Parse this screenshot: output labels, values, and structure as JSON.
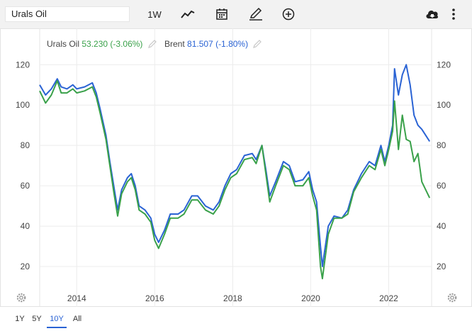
{
  "toolbar": {
    "search_value": "Urals Oil",
    "interval_label": "1W",
    "icons": [
      "line-chart-icon",
      "calendar-icon",
      "pencil-icon",
      "add-circle-icon",
      "download-cloud-icon",
      "more-vertical-icon"
    ]
  },
  "legend": [
    {
      "name": "Urals Oil",
      "value": "53.230 (-3.06%)",
      "color": "#3aa14a"
    },
    {
      "name": "Brent",
      "value": "81.507 (-1.80%)",
      "color": "#2a63d4"
    }
  ],
  "range_buttons": [
    "1Y",
    "5Y",
    "10Y",
    "All"
  ],
  "active_range": "10Y",
  "chart_data": {
    "type": "line",
    "x_ticks": [
      "2014",
      "2016",
      "2018",
      "2020",
      "2022"
    ],
    "y_ticks": [
      "20",
      "40",
      "60",
      "80",
      "100",
      "120"
    ],
    "xlim": [
      2013.05,
      2023.1
    ],
    "ylim": [
      0,
      138
    ],
    "grid": true,
    "series": [
      {
        "name": "Brent",
        "color": "#2a63d4",
        "x": [
          2013.05,
          2013.2,
          2013.35,
          2013.5,
          2013.6,
          2013.75,
          2013.9,
          2014.0,
          2014.2,
          2014.4,
          2014.5,
          2014.6,
          2014.75,
          2014.85,
          2014.95,
          2015.05,
          2015.15,
          2015.3,
          2015.4,
          2015.5,
          2015.6,
          2015.75,
          2015.9,
          2016.0,
          2016.1,
          2016.25,
          2016.4,
          2016.6,
          2016.75,
          2016.95,
          2017.1,
          2017.3,
          2017.5,
          2017.65,
          2017.8,
          2017.95,
          2018.1,
          2018.3,
          2018.5,
          2018.6,
          2018.75,
          2018.85,
          2018.95,
          2019.1,
          2019.3,
          2019.45,
          2019.6,
          2019.8,
          2019.95,
          2020.05,
          2020.15,
          2020.25,
          2020.3,
          2020.45,
          2020.6,
          2020.8,
          2020.95,
          2021.1,
          2021.3,
          2021.5,
          2021.65,
          2021.8,
          2021.9,
          2022.0,
          2022.1,
          2022.15,
          2022.25,
          2022.35,
          2022.45,
          2022.55,
          2022.65,
          2022.75,
          2022.85,
          2022.95,
          2023.05
        ],
        "y": [
          110,
          105,
          108,
          113,
          109,
          108,
          110,
          108,
          109,
          111,
          106,
          98,
          85,
          72,
          60,
          48,
          58,
          64,
          66,
          60,
          50,
          48,
          44,
          36,
          32,
          38,
          46,
          46,
          48,
          55,
          55,
          50,
          48,
          52,
          60,
          66,
          68,
          75,
          76,
          73,
          80,
          68,
          55,
          62,
          72,
          70,
          62,
          63,
          67,
          58,
          52,
          30,
          20,
          40,
          45,
          44,
          48,
          58,
          66,
          72,
          70,
          80,
          72,
          80,
          90,
          118,
          105,
          115,
          120,
          110,
          95,
          90,
          88,
          85,
          82
        ]
      },
      {
        "name": "Urals Oil",
        "color": "#3aa14a",
        "x": [
          2013.05,
          2013.2,
          2013.35,
          2013.5,
          2013.6,
          2013.75,
          2013.9,
          2014.0,
          2014.2,
          2014.4,
          2014.5,
          2014.6,
          2014.75,
          2014.85,
          2014.95,
          2015.05,
          2015.15,
          2015.3,
          2015.4,
          2015.5,
          2015.6,
          2015.75,
          2015.9,
          2016.0,
          2016.1,
          2016.25,
          2016.4,
          2016.6,
          2016.75,
          2016.95,
          2017.1,
          2017.3,
          2017.5,
          2017.65,
          2017.8,
          2017.95,
          2018.1,
          2018.3,
          2018.5,
          2018.6,
          2018.75,
          2018.85,
          2018.95,
          2019.1,
          2019.3,
          2019.45,
          2019.6,
          2019.8,
          2019.95,
          2020.05,
          2020.15,
          2020.25,
          2020.3,
          2020.45,
          2020.6,
          2020.8,
          2020.95,
          2021.1,
          2021.3,
          2021.5,
          2021.65,
          2021.8,
          2021.9,
          2022.0,
          2022.1,
          2022.15,
          2022.25,
          2022.35,
          2022.45,
          2022.55,
          2022.65,
          2022.75,
          2022.85,
          2022.95,
          2023.05
        ],
        "y": [
          107,
          101,
          105,
          112,
          106,
          106,
          108,
          106,
          107,
          109,
          104,
          96,
          83,
          70,
          57,
          45,
          56,
          62,
          64,
          58,
          48,
          46,
          42,
          33,
          29,
          36,
          44,
          44,
          46,
          53,
          53,
          48,
          46,
          50,
          58,
          64,
          66,
          73,
          74,
          71,
          80,
          66,
          52,
          60,
          70,
          68,
          60,
          60,
          64,
          55,
          48,
          20,
          14,
          36,
          44,
          44,
          46,
          57,
          64,
          70,
          68,
          78,
          70,
          78,
          87,
          102,
          78,
          95,
          83,
          82,
          72,
          76,
          62,
          58,
          54
        ]
      }
    ]
  }
}
